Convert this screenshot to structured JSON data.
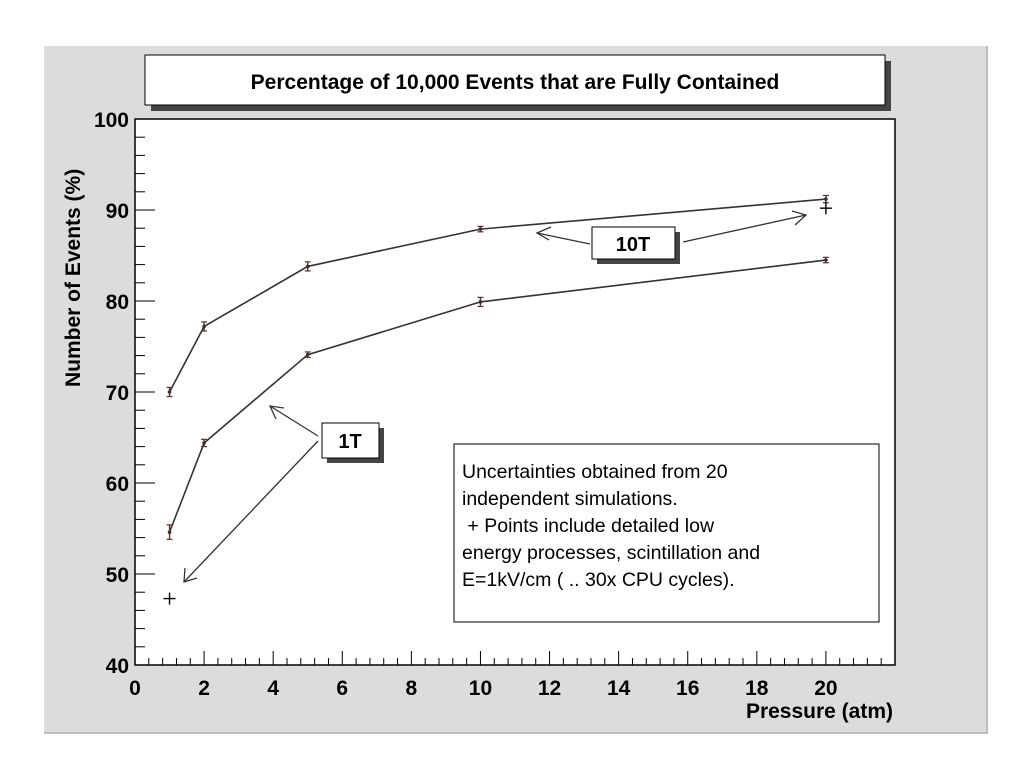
{
  "chart_data": {
    "type": "line",
    "title": "Percentage of 10,000 Events that are Fully Contained",
    "xlabel": "Pressure (atm)",
    "ylabel": "Number of Events (%)",
    "xlim": [
      0,
      22
    ],
    "ylim": [
      40,
      100
    ],
    "x_ticks": [
      0,
      2,
      4,
      6,
      8,
      10,
      12,
      14,
      16,
      18,
      20
    ],
    "y_ticks": [
      40,
      50,
      60,
      70,
      80,
      90,
      100
    ],
    "grid": false,
    "series": [
      {
        "name": "10T",
        "x": [
          1,
          2,
          5,
          10,
          20
        ],
        "y": [
          70.0,
          77.2,
          83.8,
          87.9,
          91.2
        ],
        "err": [
          0.5,
          0.5,
          0.5,
          0.3,
          0.4
        ],
        "color": "#333333"
      },
      {
        "name": "1T",
        "x": [
          1,
          2,
          5,
          10,
          20
        ],
        "y": [
          54.6,
          64.4,
          74.1,
          79.9,
          84.5
        ],
        "err": [
          0.8,
          0.4,
          0.3,
          0.5,
          0.3
        ],
        "color": "#333333"
      }
    ],
    "extra_points": [
      {
        "label": "10T",
        "x": 20,
        "y": 90.2
      },
      {
        "label": "1T",
        "x": 1,
        "y": 47.3
      }
    ],
    "annotations": {
      "label_10T": "10T",
      "label_1T": "1T",
      "note": [
        "Uncertainties obtained from 20",
        "independent simulations.",
        " + Points include detailed low",
        "energy processes, scintillation and",
        "E=1kV/cm ( .. 30x CPU cycles)."
      ]
    }
  }
}
